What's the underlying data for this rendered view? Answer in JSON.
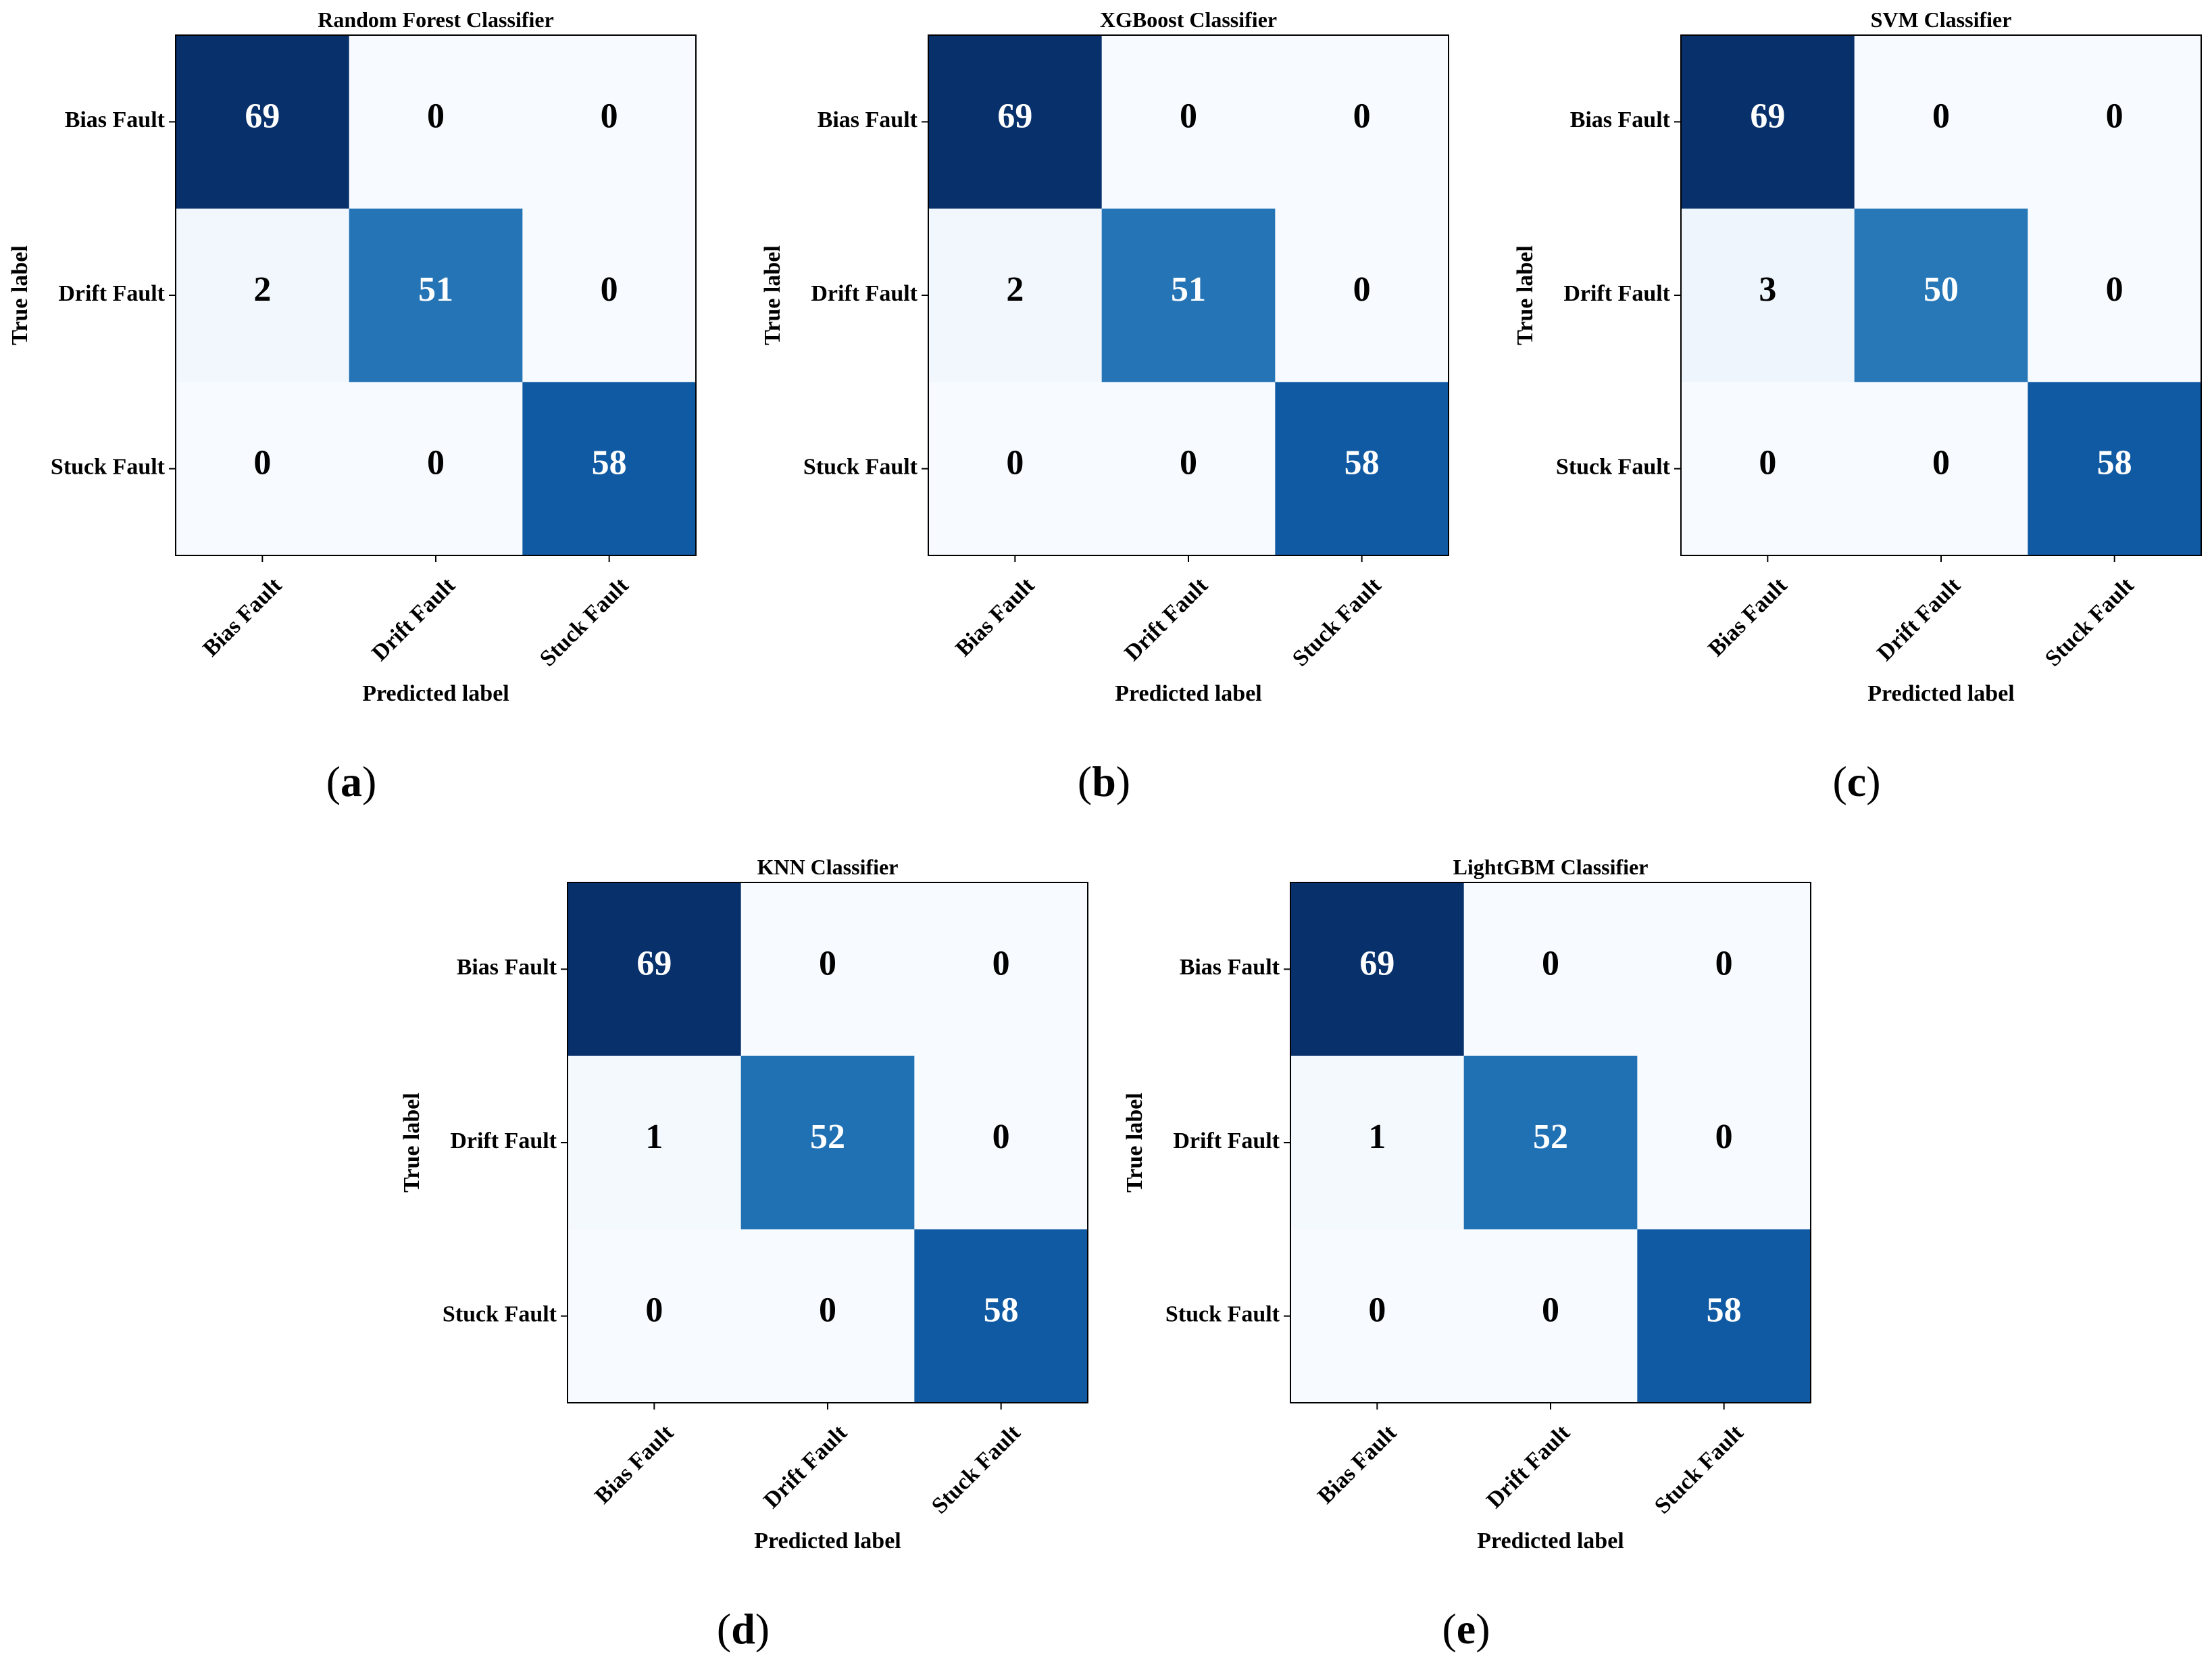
{
  "chart_data": [
    {
      "type": "heatmap",
      "panel": "(a)",
      "title": "Random Forest Classifier",
      "xlabel": "Predicted label",
      "ylabel": "True label",
      "x_categories": [
        "Bias Fault",
        "Drift Fault",
        "Stuck Fault"
      ],
      "y_categories": [
        "Bias Fault",
        "Drift Fault",
        "Stuck Fault"
      ],
      "values": [
        [
          69,
          0,
          0
        ],
        [
          2,
          51,
          0
        ],
        [
          0,
          0,
          58
        ]
      ],
      "colormap": "Blues",
      "grid": false
    },
    {
      "type": "heatmap",
      "panel": "(b)",
      "title": "XGBoost Classifier",
      "xlabel": "Predicted label",
      "ylabel": "True label",
      "x_categories": [
        "Bias Fault",
        "Drift Fault",
        "Stuck Fault"
      ],
      "y_categories": [
        "Bias Fault",
        "Drift Fault",
        "Stuck Fault"
      ],
      "values": [
        [
          69,
          0,
          0
        ],
        [
          2,
          51,
          0
        ],
        [
          0,
          0,
          58
        ]
      ],
      "colormap": "Blues",
      "grid": false
    },
    {
      "type": "heatmap",
      "panel": "(c)",
      "title": "SVM Classifier",
      "xlabel": "Predicted label",
      "ylabel": "True label",
      "x_categories": [
        "Bias Fault",
        "Drift Fault",
        "Stuck Fault"
      ],
      "y_categories": [
        "Bias Fault",
        "Drift Fault",
        "Stuck Fault"
      ],
      "values": [
        [
          69,
          0,
          0
        ],
        [
          3,
          50,
          0
        ],
        [
          0,
          0,
          58
        ]
      ],
      "colormap": "Blues",
      "grid": false
    },
    {
      "type": "heatmap",
      "panel": "(d)",
      "title": "KNN Classifier",
      "xlabel": "Predicted label",
      "ylabel": "True label",
      "x_categories": [
        "Bias Fault",
        "Drift Fault",
        "Stuck Fault"
      ],
      "y_categories": [
        "Bias Fault",
        "Drift Fault",
        "Stuck Fault"
      ],
      "values": [
        [
          69,
          0,
          0
        ],
        [
          1,
          52,
          0
        ],
        [
          0,
          0,
          58
        ]
      ],
      "colormap": "Blues",
      "grid": false
    },
    {
      "type": "heatmap",
      "panel": "(e)",
      "title": "LightGBM Classifier",
      "xlabel": "Predicted label",
      "ylabel": "True label",
      "x_categories": [
        "Bias Fault",
        "Drift Fault",
        "Stuck Fault"
      ],
      "y_categories": [
        "Bias Fault",
        "Drift Fault",
        "Stuck Fault"
      ],
      "values": [
        [
          69,
          0,
          0
        ],
        [
          1,
          52,
          0
        ],
        [
          0,
          0,
          58
        ]
      ],
      "colormap": "Blues",
      "grid": false
    }
  ],
  "colors": {
    "cell_text_dark": "#000000",
    "cell_text_light": "#ffffff",
    "frame": "#000000"
  }
}
